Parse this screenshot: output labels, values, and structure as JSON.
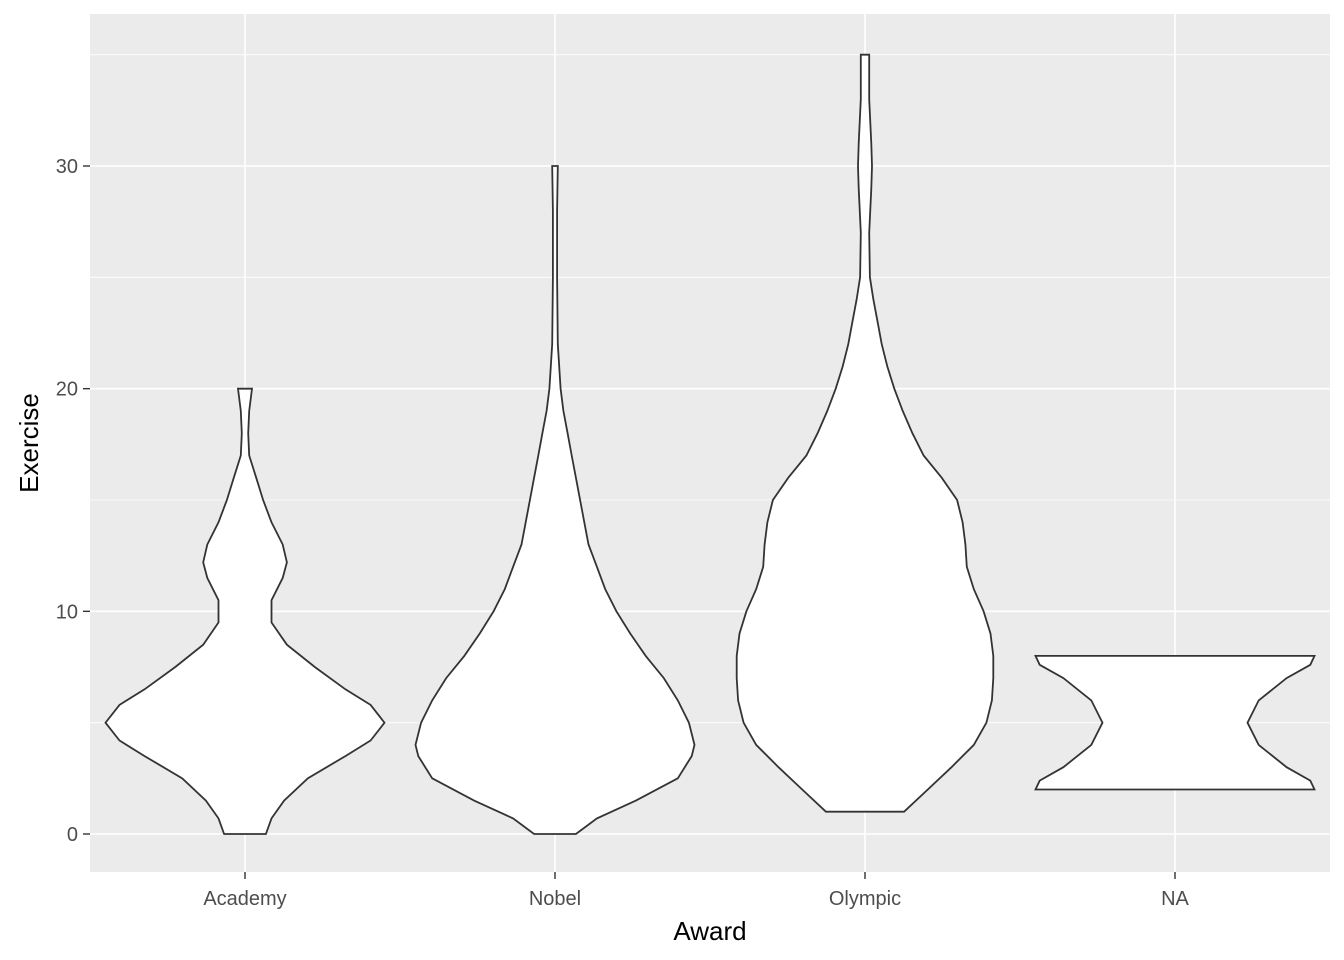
{
  "chart_data": {
    "type": "violin",
    "xlabel": "Award",
    "ylabel": "Exercise",
    "categories": [
      "Academy",
      "Nobel",
      "Olympic",
      "NA"
    ],
    "ylim": [
      -1.75,
      36.75
    ],
    "y_ticks": [
      0,
      10,
      20,
      30
    ],
    "grid": true,
    "legend": "none",
    "colors": {
      "panel": "#ebebeb",
      "grid": "#ffffff",
      "violin_fill": "#ffffff",
      "violin_outline": "#333333"
    },
    "violins": [
      {
        "category": "Academy",
        "profile": [
          [
            0,
            0.15
          ],
          [
            0.7,
            0.19
          ],
          [
            1.5,
            0.28
          ],
          [
            2.5,
            0.45
          ],
          [
            3.5,
            0.72
          ],
          [
            4.2,
            0.9
          ],
          [
            5,
            1.0
          ],
          [
            5.8,
            0.9
          ],
          [
            6.5,
            0.72
          ],
          [
            7.5,
            0.5
          ],
          [
            8.5,
            0.3
          ],
          [
            9.5,
            0.19
          ],
          [
            10.5,
            0.19
          ],
          [
            11.5,
            0.27
          ],
          [
            12.2,
            0.3
          ],
          [
            13,
            0.27
          ],
          [
            14,
            0.19
          ],
          [
            15,
            0.13
          ],
          [
            16,
            0.08
          ],
          [
            17,
            0.03
          ],
          [
            18,
            0.023
          ],
          [
            19,
            0.03
          ],
          [
            20,
            0.05
          ]
        ]
      },
      {
        "category": "Nobel",
        "profile": [
          [
            0,
            0.15
          ],
          [
            0.7,
            0.3
          ],
          [
            1.5,
            0.58
          ],
          [
            2.5,
            0.88
          ],
          [
            3.5,
            0.98
          ],
          [
            4,
            1.0
          ],
          [
            5,
            0.96
          ],
          [
            6,
            0.88
          ],
          [
            7,
            0.78
          ],
          [
            8,
            0.65
          ],
          [
            9,
            0.54
          ],
          [
            10,
            0.44
          ],
          [
            11,
            0.36
          ],
          [
            12,
            0.3
          ],
          [
            13,
            0.24
          ],
          [
            14,
            0.21
          ],
          [
            15,
            0.18
          ],
          [
            16,
            0.15
          ],
          [
            17,
            0.12
          ],
          [
            18,
            0.09
          ],
          [
            19,
            0.06
          ],
          [
            20,
            0.04
          ],
          [
            22,
            0.02
          ],
          [
            25,
            0.015
          ],
          [
            28,
            0.015
          ],
          [
            30,
            0.02
          ]
        ]
      },
      {
        "category": "Olympic",
        "profile": [
          [
            1,
            0.28
          ],
          [
            2,
            0.45
          ],
          [
            3,
            0.62
          ],
          [
            4,
            0.78
          ],
          [
            5,
            0.87
          ],
          [
            6,
            0.91
          ],
          [
            7,
            0.92
          ],
          [
            8,
            0.92
          ],
          [
            9,
            0.9
          ],
          [
            10,
            0.85
          ],
          [
            11,
            0.78
          ],
          [
            12,
            0.73
          ],
          [
            13,
            0.72
          ],
          [
            14,
            0.7
          ],
          [
            15,
            0.66
          ],
          [
            16,
            0.55
          ],
          [
            17,
            0.42
          ],
          [
            18,
            0.34
          ],
          [
            19,
            0.27
          ],
          [
            20,
            0.21
          ],
          [
            21,
            0.16
          ],
          [
            22,
            0.12
          ],
          [
            23,
            0.09
          ],
          [
            24,
            0.06
          ],
          [
            25,
            0.035
          ],
          [
            27,
            0.03
          ],
          [
            29,
            0.045
          ],
          [
            30,
            0.05
          ],
          [
            31,
            0.045
          ],
          [
            33,
            0.03
          ],
          [
            35,
            0.03
          ]
        ]
      },
      {
        "category": "NA",
        "profile": [
          [
            2,
            1.0
          ],
          [
            2.4,
            0.97
          ],
          [
            3,
            0.8
          ],
          [
            4,
            0.6
          ],
          [
            5,
            0.52
          ],
          [
            6,
            0.6
          ],
          [
            7,
            0.8
          ],
          [
            7.6,
            0.97
          ],
          [
            8,
            1.0
          ]
        ]
      }
    ]
  }
}
